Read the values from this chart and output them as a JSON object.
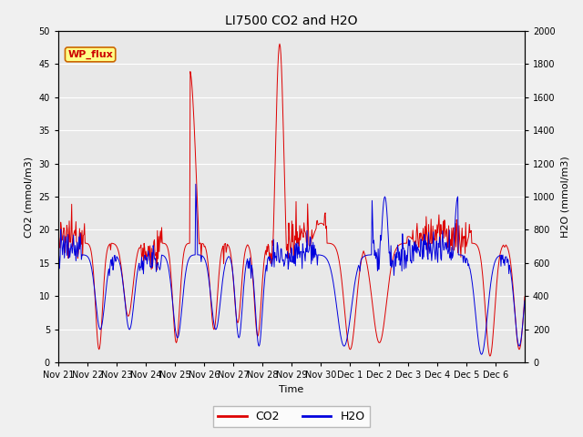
{
  "title": "LI7500 CO2 and H2O",
  "xlabel": "Time",
  "ylabel_left": "CO2 (mmol/m3)",
  "ylabel_right": "H2O (mmol/m3)",
  "ylim_left": [
    0,
    50
  ],
  "ylim_right": [
    0,
    2000
  ],
  "yticks_left": [
    0,
    5,
    10,
    15,
    20,
    25,
    30,
    35,
    40,
    45,
    50
  ],
  "yticks_right": [
    0,
    200,
    400,
    600,
    800,
    1000,
    1200,
    1400,
    1600,
    1800,
    2000
  ],
  "x_tick_labels": [
    "Nov 21",
    "Nov 22",
    "Nov 23",
    "Nov 24",
    "Nov 25",
    "Nov 26",
    "Nov 27",
    "Nov 28",
    "Nov 29",
    "Nov 30",
    "Dec 1",
    "Dec 2",
    "Dec 3",
    "Dec 4",
    "Dec 5",
    "Dec 6"
  ],
  "annotation_text": "WP_flux",
  "co2_color": "#dd0000",
  "h2o_color": "#0000dd",
  "plot_bg_color": "#e8e8e8",
  "fig_bg_color": "#f0f0f0",
  "grid_color": "#ffffff",
  "legend_co2": "CO2",
  "legend_h2o": "H2O",
  "co2_baseline": 18.0,
  "co2_noise": 1.5,
  "h2o_baseline": 650.0,
  "h2o_noise": 50.0
}
